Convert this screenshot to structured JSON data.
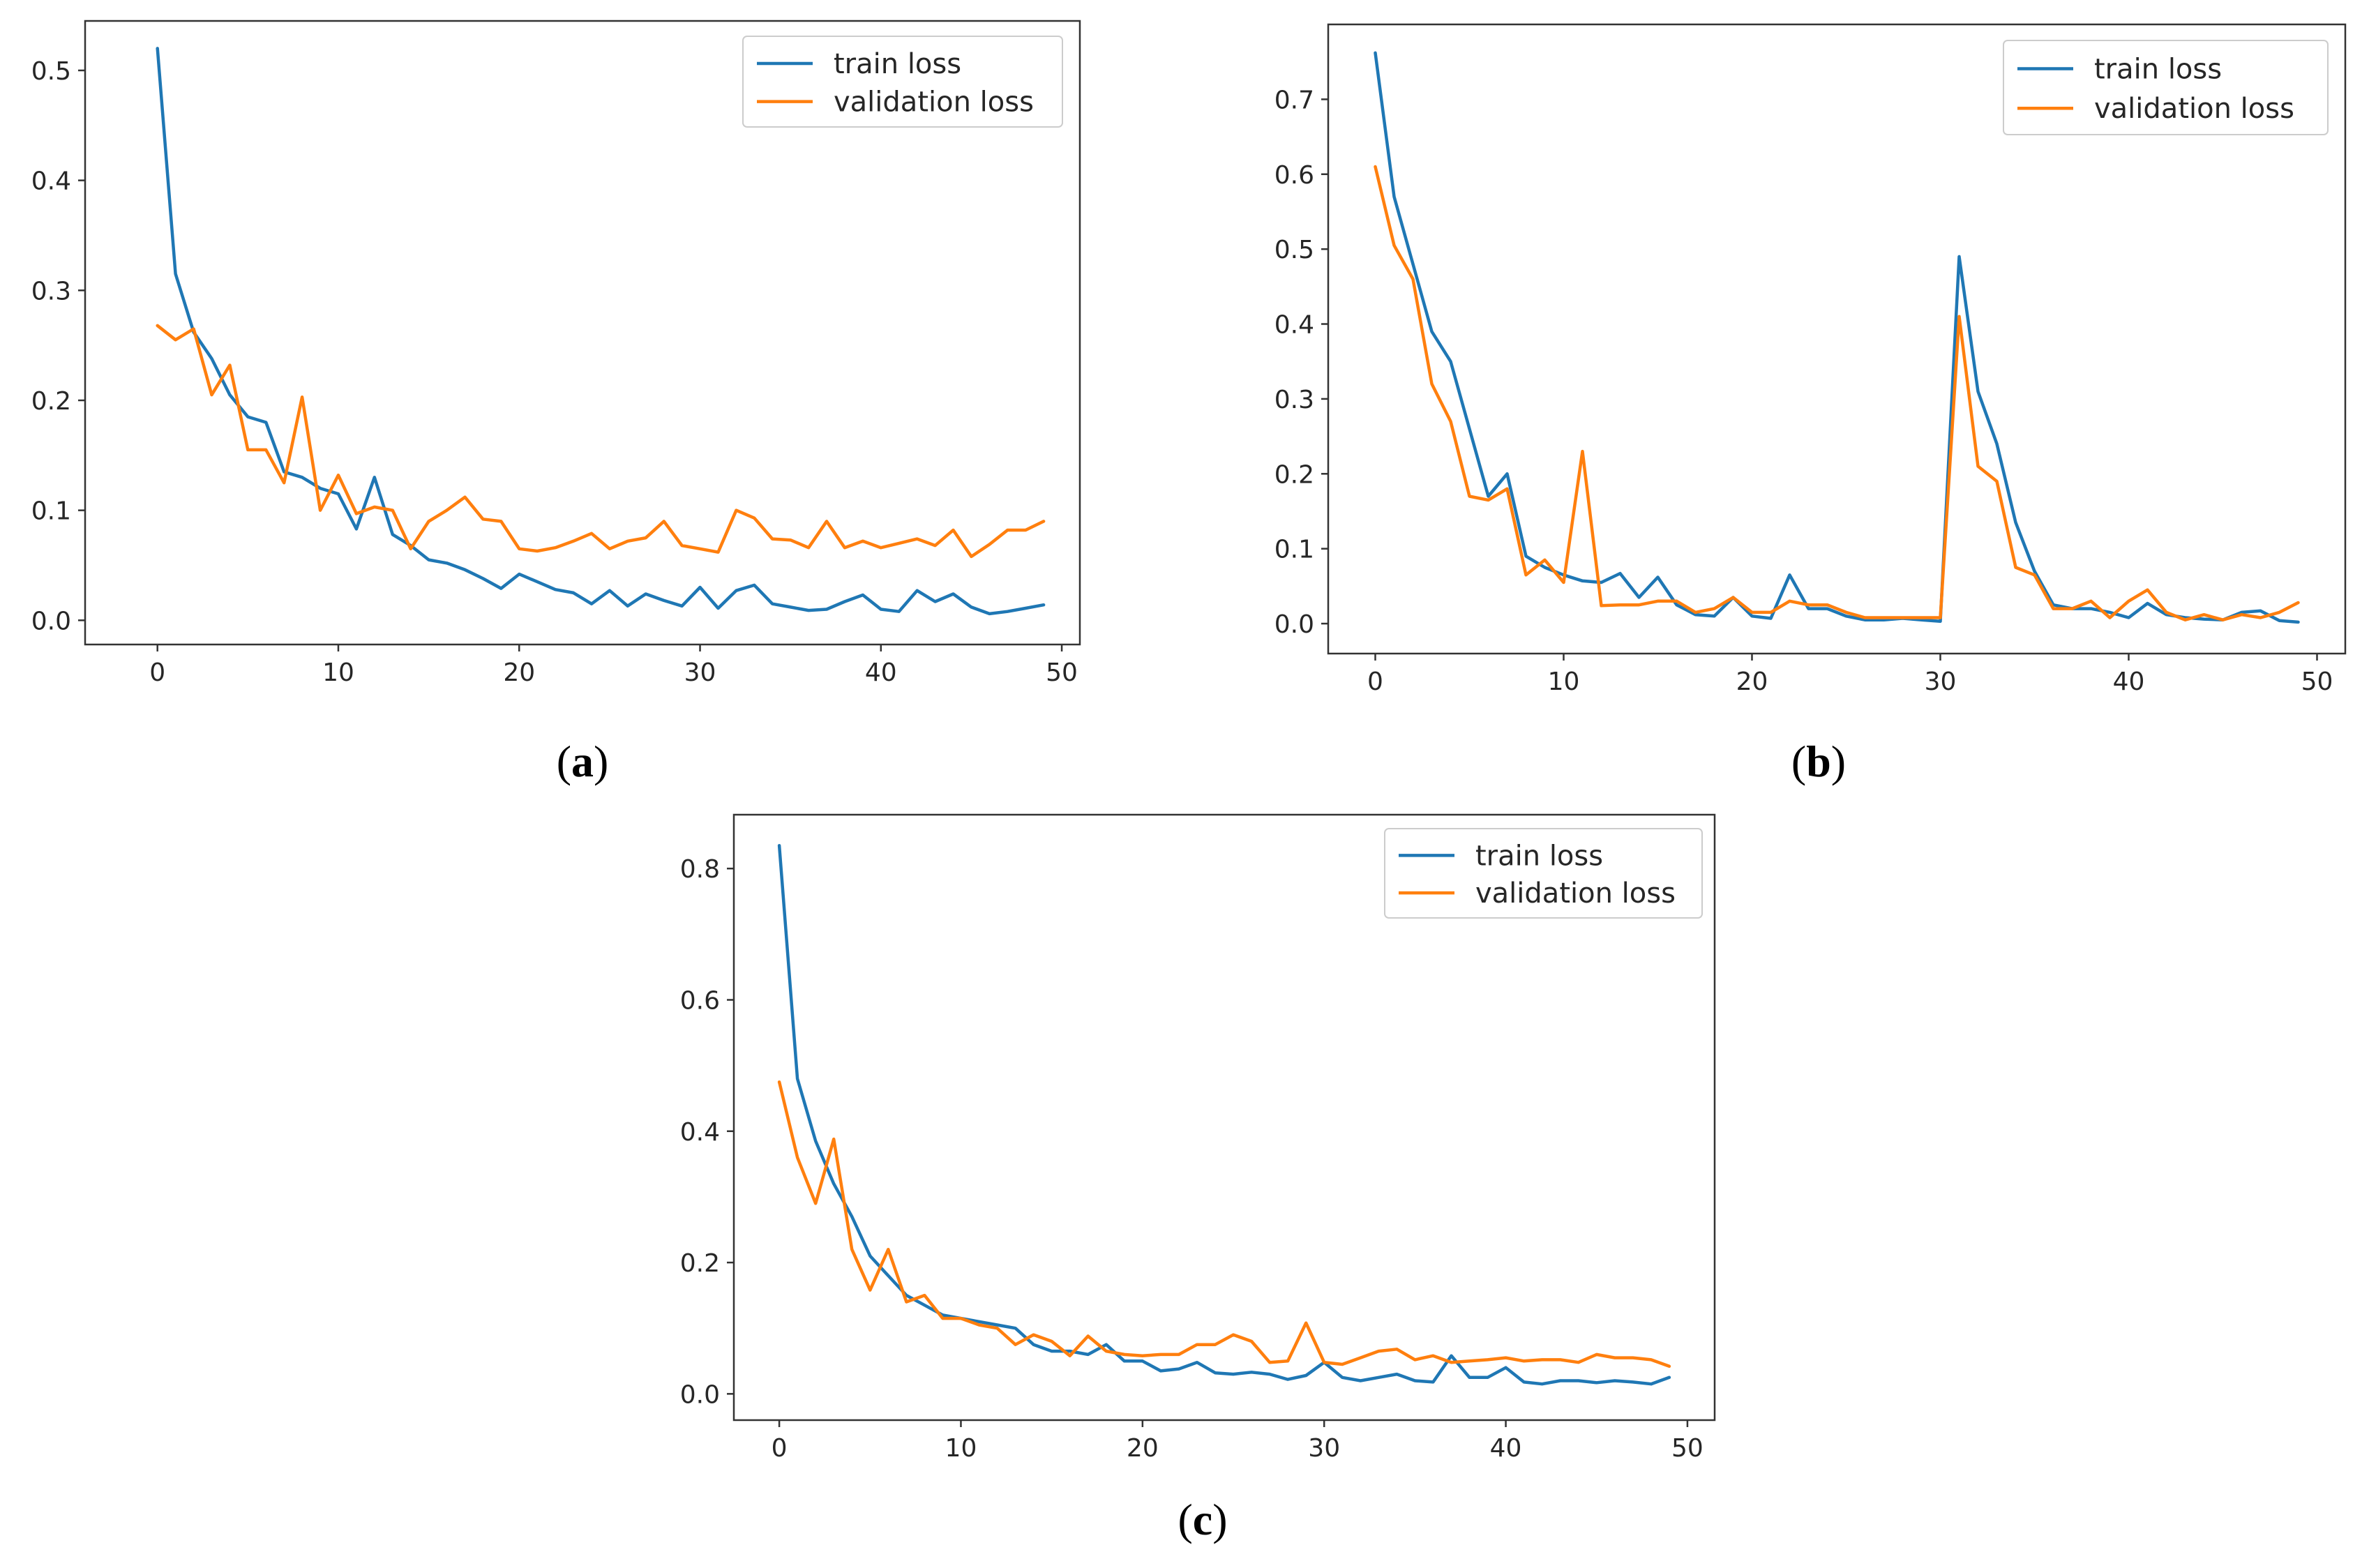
{
  "figure": {
    "colors": {
      "train": "#1f77b4",
      "validation": "#ff7f0e",
      "axes": "#333333"
    }
  },
  "chart_data": [
    {
      "type": "line",
      "panel": "a",
      "caption": {
        "open": "(",
        "letter": "a",
        "close": ")"
      },
      "title": "",
      "xlabel": "",
      "ylabel": "",
      "xlim": [
        -4,
        51
      ],
      "ylim": [
        -0.022,
        0.545
      ],
      "xticks": [
        0,
        10,
        20,
        30,
        40,
        50
      ],
      "yticks": [
        0.0,
        0.1,
        0.2,
        0.3,
        0.4,
        0.5
      ],
      "ytick_labels": [
        "0.0",
        "0.1",
        "0.2",
        "0.3",
        "0.4",
        "0.5"
      ],
      "legend": {
        "location": "top-right"
      },
      "x": [
        0,
        1,
        2,
        3,
        4,
        5,
        6,
        7,
        8,
        9,
        10,
        11,
        12,
        13,
        14,
        15,
        16,
        17,
        18,
        19,
        20,
        21,
        22,
        23,
        24,
        25,
        26,
        27,
        28,
        29,
        30,
        31,
        32,
        33,
        34,
        35,
        36,
        37,
        38,
        39,
        40,
        41,
        42,
        43,
        44,
        45,
        46,
        47,
        48,
        49
      ],
      "series": [
        {
          "name": "train loss",
          "values": [
            0.52,
            0.315,
            0.262,
            0.238,
            0.205,
            0.185,
            0.18,
            0.135,
            0.13,
            0.12,
            0.115,
            0.083,
            0.13,
            0.078,
            0.068,
            0.055,
            0.052,
            0.046,
            0.038,
            0.029,
            0.042,
            0.035,
            0.028,
            0.025,
            0.015,
            0.027,
            0.013,
            0.024,
            0.018,
            0.013,
            0.03,
            0.011,
            0.027,
            0.032,
            0.015,
            0.012,
            0.009,
            0.01,
            0.017,
            0.023,
            0.01,
            0.008,
            0.027,
            0.017,
            0.024,
            0.012,
            0.006,
            0.008,
            0.011,
            0.014
          ]
        },
        {
          "name": "validation loss",
          "values": [
            0.268,
            0.255,
            0.265,
            0.205,
            0.232,
            0.155,
            0.155,
            0.125,
            0.203,
            0.1,
            0.132,
            0.097,
            0.103,
            0.1,
            0.065,
            0.09,
            0.1,
            0.112,
            0.092,
            0.09,
            0.065,
            0.063,
            0.066,
            0.072,
            0.079,
            0.065,
            0.072,
            0.075,
            0.09,
            0.068,
            0.065,
            0.062,
            0.1,
            0.093,
            0.074,
            0.073,
            0.066,
            0.09,
            0.066,
            0.072,
            0.066,
            0.07,
            0.074,
            0.068,
            0.082,
            0.058,
            0.069,
            0.082,
            0.082,
            0.09
          ]
        }
      ]
    },
    {
      "type": "line",
      "panel": "b",
      "caption": {
        "open": "(",
        "letter": "b",
        "close": ")"
      },
      "title": "",
      "xlabel": "",
      "ylabel": "",
      "xlim": [
        -2.5,
        51.5
      ],
      "ylim": [
        -0.04,
        0.8
      ],
      "xticks": [
        0,
        10,
        20,
        30,
        40,
        50
      ],
      "yticks": [
        0.0,
        0.1,
        0.2,
        0.3,
        0.4,
        0.5,
        0.6,
        0.7
      ],
      "ytick_labels": [
        "0.0",
        "0.1",
        "0.2",
        "0.3",
        "0.4",
        "0.5",
        "0.6",
        "0.7"
      ],
      "legend": {
        "location": "top-right"
      },
      "x": [
        0,
        1,
        2,
        3,
        4,
        5,
        6,
        7,
        8,
        9,
        10,
        11,
        12,
        13,
        14,
        15,
        16,
        17,
        18,
        19,
        20,
        21,
        22,
        23,
        24,
        25,
        26,
        27,
        28,
        29,
        30,
        31,
        32,
        33,
        34,
        35,
        36,
        37,
        38,
        39,
        40,
        41,
        42,
        43,
        44,
        45,
        46,
        47,
        48,
        49
      ],
      "series": [
        {
          "name": "train loss",
          "values": [
            0.762,
            0.57,
            0.48,
            0.39,
            0.35,
            0.26,
            0.17,
            0.2,
            0.09,
            0.075,
            0.065,
            0.057,
            0.055,
            0.067,
            0.035,
            0.062,
            0.025,
            0.012,
            0.01,
            0.035,
            0.01,
            0.007,
            0.065,
            0.02,
            0.02,
            0.01,
            0.005,
            0.005,
            0.007,
            0.005,
            0.003,
            0.49,
            0.31,
            0.24,
            0.135,
            0.07,
            0.025,
            0.02,
            0.02,
            0.015,
            0.008,
            0.027,
            0.012,
            0.008,
            0.006,
            0.005,
            0.015,
            0.017,
            0.004,
            0.002
          ]
        },
        {
          "name": "validation loss",
          "values": [
            0.61,
            0.505,
            0.46,
            0.32,
            0.27,
            0.17,
            0.165,
            0.18,
            0.065,
            0.085,
            0.055,
            0.23,
            0.024,
            0.025,
            0.025,
            0.03,
            0.03,
            0.015,
            0.02,
            0.035,
            0.015,
            0.015,
            0.03,
            0.025,
            0.025,
            0.015,
            0.008,
            0.008,
            0.008,
            0.008,
            0.008,
            0.41,
            0.21,
            0.19,
            0.075,
            0.065,
            0.02,
            0.02,
            0.03,
            0.008,
            0.03,
            0.045,
            0.015,
            0.005,
            0.012,
            0.005,
            0.012,
            0.008,
            0.015,
            0.028
          ]
        }
      ]
    },
    {
      "type": "line",
      "panel": "c",
      "caption": {
        "open": "(",
        "letter": "c",
        "close": ")"
      },
      "title": "",
      "xlabel": "",
      "ylabel": "",
      "xlim": [
        -2.5,
        51.5
      ],
      "ylim": [
        -0.04,
        0.882
      ],
      "xticks": [
        0,
        10,
        20,
        30,
        40,
        50
      ],
      "yticks": [
        0.0,
        0.2,
        0.4,
        0.6,
        0.8
      ],
      "ytick_labels": [
        "0.0",
        "0.2",
        "0.4",
        "0.6",
        "0.8"
      ],
      "legend": {
        "location": "top-right"
      },
      "x": [
        0,
        1,
        2,
        3,
        4,
        5,
        6,
        7,
        8,
        9,
        10,
        11,
        12,
        13,
        14,
        15,
        16,
        17,
        18,
        19,
        20,
        21,
        22,
        23,
        24,
        25,
        26,
        27,
        28,
        29,
        30,
        31,
        32,
        33,
        34,
        35,
        36,
        37,
        38,
        39,
        40,
        41,
        42,
        43,
        44,
        45,
        46,
        47,
        48,
        49
      ],
      "series": [
        {
          "name": "train loss",
          "values": [
            0.835,
            0.48,
            0.385,
            0.32,
            0.27,
            0.21,
            0.18,
            0.15,
            0.135,
            0.12,
            0.115,
            0.11,
            0.105,
            0.1,
            0.075,
            0.065,
            0.065,
            0.06,
            0.075,
            0.05,
            0.05,
            0.035,
            0.038,
            0.048,
            0.032,
            0.03,
            0.033,
            0.03,
            0.022,
            0.028,
            0.048,
            0.025,
            0.02,
            0.025,
            0.03,
            0.02,
            0.018,
            0.058,
            0.025,
            0.025,
            0.04,
            0.018,
            0.015,
            0.02,
            0.02,
            0.017,
            0.02,
            0.018,
            0.015,
            0.025
          ]
        },
        {
          "name": "validation loss",
          "values": [
            0.475,
            0.36,
            0.29,
            0.388,
            0.22,
            0.158,
            0.22,
            0.14,
            0.15,
            0.115,
            0.115,
            0.105,
            0.1,
            0.075,
            0.09,
            0.08,
            0.058,
            0.088,
            0.065,
            0.06,
            0.058,
            0.06,
            0.06,
            0.075,
            0.075,
            0.09,
            0.08,
            0.048,
            0.05,
            0.108,
            0.048,
            0.045,
            0.055,
            0.065,
            0.068,
            0.052,
            0.058,
            0.048,
            0.05,
            0.052,
            0.055,
            0.05,
            0.052,
            0.052,
            0.048,
            0.06,
            0.055,
            0.055,
            0.052,
            0.042
          ]
        }
      ]
    }
  ]
}
